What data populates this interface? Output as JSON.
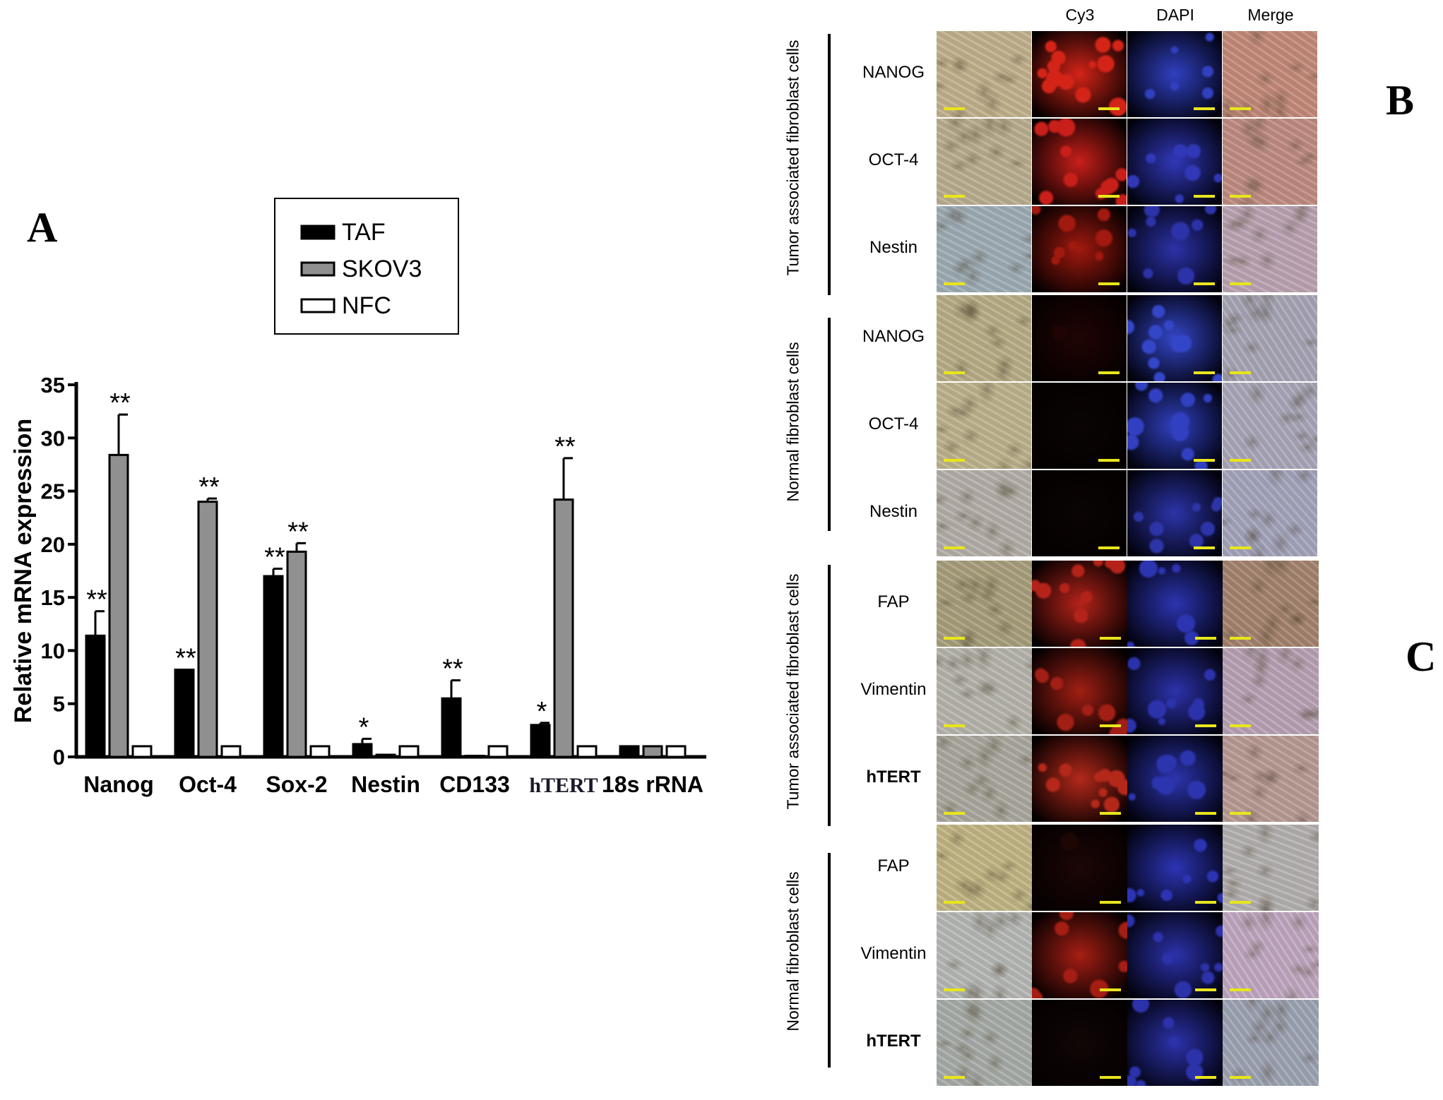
{
  "panel_labels": {
    "a": "A",
    "b": "B",
    "c": "C"
  },
  "chart_data": {
    "type": "bar",
    "ylabel": "Relative mRNA expression",
    "xlabel": "",
    "ylim": [
      0,
      35
    ],
    "yticks": [
      0,
      5,
      10,
      15,
      20,
      25,
      30,
      35
    ],
    "categories": [
      "Nanog",
      "Oct-4",
      "Sox-2",
      "Nestin",
      "CD133",
      "hTERT",
      "18s rRNA"
    ],
    "series": [
      {
        "name": "TAF",
        "color": "#000000",
        "values": [
          11.4,
          8.2,
          17.0,
          1.2,
          5.5,
          3.0,
          1.0
        ],
        "errors": [
          2.3,
          0.0,
          0.7,
          0.5,
          1.7,
          0.2,
          0.0
        ],
        "significance": [
          "**",
          "**",
          "**",
          "*",
          "**",
          "*",
          ""
        ]
      },
      {
        "name": "SKOV3",
        "color": "#909090",
        "values": [
          28.4,
          24.0,
          19.3,
          0.2,
          0.1,
          24.2,
          1.0
        ],
        "errors": [
          3.8,
          0.3,
          0.8,
          0.0,
          0.0,
          3.9,
          0.0
        ],
        "significance": [
          "**",
          "**",
          "**",
          "",
          "",
          "**",
          ""
        ]
      },
      {
        "name": "NFC",
        "color": "#ffffff",
        "values": [
          1.0,
          1.0,
          1.0,
          1.0,
          1.0,
          1.0,
          1.0
        ],
        "errors": [
          0,
          0,
          0,
          0,
          0,
          0,
          0
        ],
        "significance": [
          "",
          "",
          "",
          "",
          "",
          "",
          ""
        ]
      }
    ],
    "legend": "top",
    "grid": false
  },
  "micrograph_panel": {
    "columns": [
      "Cy3",
      "DAPI",
      "Merge"
    ],
    "groups": [
      {
        "label": "Tumor associated fibroblast cells",
        "panel": "B",
        "rows": [
          {
            "marker": "NANOG",
            "bold": false,
            "bright": "#c1b08c",
            "cy3": "#d42418",
            "cy3_level": 0.9,
            "dapi": "#3040c0",
            "dapi_level": 0.4,
            "merge": "#c48a7a"
          },
          {
            "marker": "OCT-4",
            "bold": false,
            "bright": "#b9ad8e",
            "cy3": "#c91f1a",
            "cy3_level": 0.8,
            "dapi": "#3038b8",
            "dapi_level": 0.5,
            "merge": "#bf8c82"
          },
          {
            "marker": "Nestin",
            "bold": false,
            "bright": "#9eacb5",
            "cy3": "#a2190f",
            "cy3_level": 0.6,
            "dapi": "#2c32a8",
            "dapi_level": 0.6,
            "merge": "#bba3b2"
          }
        ]
      },
      {
        "label": "Normal fibroblast cells",
        "panel": "B",
        "rows": [
          {
            "marker": "NANOG",
            "bold": false,
            "bright": "#b8ad86",
            "cy3": "#200404",
            "cy3_level": 0.05,
            "dapi": "#3446c8",
            "dapi_level": 0.7,
            "merge": "#a8a6b6"
          },
          {
            "marker": "OCT-4",
            "bold": false,
            "bright": "#bdb28c",
            "cy3": "#0a0404",
            "cy3_level": 0.0,
            "dapi": "#3040c0",
            "dapi_level": 0.7,
            "merge": "#aaa7b9"
          },
          {
            "marker": "Nestin",
            "bold": false,
            "bright": "#b4aea8",
            "cy3": "#0a0404",
            "cy3_level": 0.0,
            "dapi": "#2c34a8",
            "dapi_level": 0.6,
            "merge": "#a4a4bc"
          }
        ]
      },
      {
        "label": "Tumor associated fibroblast cells",
        "panel": "C",
        "rows": [
          {
            "marker": "FAP",
            "bold": false,
            "bright": "#a89e7c",
            "cy3": "#b4231a",
            "cy3_level": 0.7,
            "dapi": "#2c34b0",
            "dapi_level": 0.4,
            "merge": "#a4836e"
          },
          {
            "marker": "Vimentin",
            "bold": false,
            "bright": "#b6b4ac",
            "cy3": "#a11f14",
            "cy3_level": 0.6,
            "dapi": "#2c32aa",
            "dapi_level": 0.6,
            "merge": "#b8a2b4"
          },
          {
            "marker": "hTERT",
            "bold": true,
            "bright": "#aaa89e",
            "cy3": "#b4281a",
            "cy3_level": 0.7,
            "dapi": "#2c34ae",
            "dapi_level": 0.6,
            "merge": "#b89a94"
          }
        ]
      },
      {
        "label": "Normal fibroblast cells",
        "panel": "C",
        "rows": [
          {
            "marker": "FAP",
            "bold": false,
            "bright": "#c1b584",
            "cy3": "#1c0606",
            "cy3_level": 0.05,
            "dapi": "#2c34b4",
            "dapi_level": 0.5,
            "merge": "#b4b0b0"
          },
          {
            "marker": "Vimentin",
            "bold": false,
            "bright": "#b6b8b6",
            "cy3": "#a51e14",
            "cy3_level": 0.6,
            "dapi": "#2c32aa",
            "dapi_level": 0.6,
            "merge": "#c0a8c0"
          },
          {
            "marker": "hTERT",
            "bold": true,
            "bright": "#a8aca8",
            "cy3": "#100606",
            "cy3_level": 0.0,
            "dapi": "#2c32aa",
            "dapi_level": 0.6,
            "merge": "#9ea4b4"
          }
        ]
      }
    ]
  }
}
